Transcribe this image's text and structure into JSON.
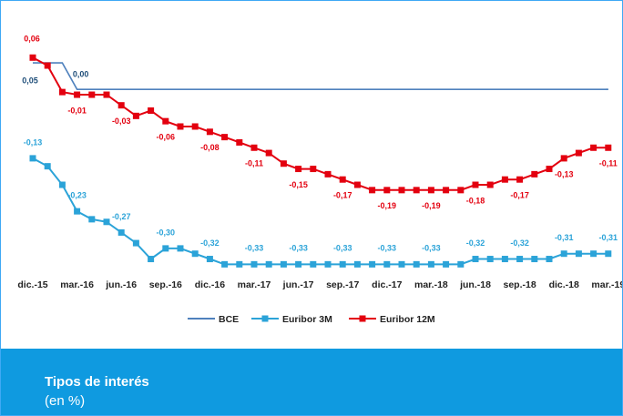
{
  "chart_data": {
    "type": "line",
    "title": "Tipos de interés",
    "subtitle": "(en %)",
    "categories": [
      "dic.-15",
      null,
      null,
      "mar.-16",
      null,
      null,
      "jun.-16",
      null,
      null,
      "sep.-16",
      null,
      null,
      "dic.-16",
      null,
      null,
      "mar.-17",
      null,
      null,
      "jun.-17",
      null,
      null,
      "sep.-17",
      null,
      null,
      "dic.-17",
      null,
      null,
      "mar.-18",
      null,
      null,
      "jun.-18",
      null,
      null,
      "sep.-18",
      null,
      null,
      "dic.-18",
      null,
      null,
      "mar.-19"
    ],
    "ylim": [
      -0.35,
      0.1
    ],
    "legend": "bottom",
    "series": [
      {
        "name": "BCE",
        "color": "#4f81bd",
        "marker": false,
        "label_color": "#1f4e79",
        "values": [
          0.05,
          0.05,
          0.05,
          0,
          0,
          0,
          0,
          0,
          0,
          0,
          0,
          0,
          0,
          0,
          0,
          0,
          0,
          0,
          0,
          0,
          0,
          0,
          0,
          0,
          0,
          0,
          0,
          0,
          0,
          0,
          0,
          0,
          0,
          0,
          0,
          0,
          0,
          0,
          0,
          0
        ],
        "value_labels": [
          "0,05",
          null,
          null,
          "0,00",
          null,
          null,
          null,
          null,
          null,
          null,
          null,
          null,
          null,
          null,
          null,
          null,
          null,
          null,
          null,
          null,
          null,
          null,
          null,
          null,
          null,
          null,
          null,
          null,
          null,
          null,
          null,
          null,
          null,
          null,
          null,
          null,
          null,
          null,
          null,
          null
        ]
      },
      {
        "name": "Euribor 3M",
        "color": "#2ba3d8",
        "marker": true,
        "label_color": "#2ba3d8",
        "values": [
          -0.13,
          -0.145,
          -0.18,
          -0.23,
          -0.245,
          -0.25,
          -0.27,
          -0.29,
          -0.32,
          -0.3,
          -0.3,
          -0.31,
          -0.32,
          -0.33,
          -0.33,
          -0.33,
          -0.33,
          -0.33,
          -0.33,
          -0.33,
          -0.33,
          -0.33,
          -0.33,
          -0.33,
          -0.33,
          -0.33,
          -0.33,
          -0.33,
          -0.33,
          -0.33,
          -0.32,
          -0.32,
          -0.32,
          -0.32,
          -0.32,
          -0.32,
          -0.31,
          -0.31,
          -0.31,
          -0.31
        ],
        "value_labels": [
          "-0,13",
          null,
          null,
          "-0,23",
          null,
          null,
          "-0,27",
          null,
          null,
          "-0,30",
          null,
          null,
          "-0,32",
          null,
          null,
          "-0,33",
          null,
          null,
          "-0,33",
          null,
          null,
          "-0,33",
          null,
          null,
          "-0,33",
          null,
          null,
          "-0,33",
          null,
          null,
          "-0,32",
          null,
          null,
          "-0,32",
          null,
          null,
          "-0,31",
          null,
          null,
          "-0,31"
        ]
      },
      {
        "name": "Euribor 12M",
        "color": "#e3000f",
        "marker": true,
        "label_color": "#e3000f",
        "values": [
          0.06,
          0.045,
          -0.005,
          -0.01,
          -0.01,
          -0.01,
          -0.03,
          -0.05,
          -0.04,
          -0.06,
          -0.07,
          -0.07,
          -0.08,
          -0.09,
          -0.1,
          -0.11,
          -0.12,
          -0.14,
          -0.15,
          -0.15,
          -0.16,
          -0.17,
          -0.18,
          -0.19,
          -0.19,
          -0.19,
          -0.19,
          -0.19,
          -0.19,
          -0.19,
          -0.18,
          -0.18,
          -0.17,
          -0.17,
          -0.16,
          -0.15,
          -0.13,
          -0.12,
          -0.11,
          -0.11
        ],
        "value_labels": [
          "0,06",
          null,
          null,
          "-0,01",
          null,
          null,
          "-0,03",
          null,
          null,
          "-0,06",
          null,
          null,
          "-0,08",
          null,
          null,
          "-0,11",
          null,
          null,
          "-0,15",
          null,
          null,
          "-0,17",
          null,
          null,
          "-0,19",
          null,
          null,
          "-0,19",
          null,
          null,
          "-0,18",
          null,
          null,
          "-0,17",
          null,
          null,
          "-0,13",
          null,
          null,
          "-0,11"
        ]
      }
    ]
  }
}
